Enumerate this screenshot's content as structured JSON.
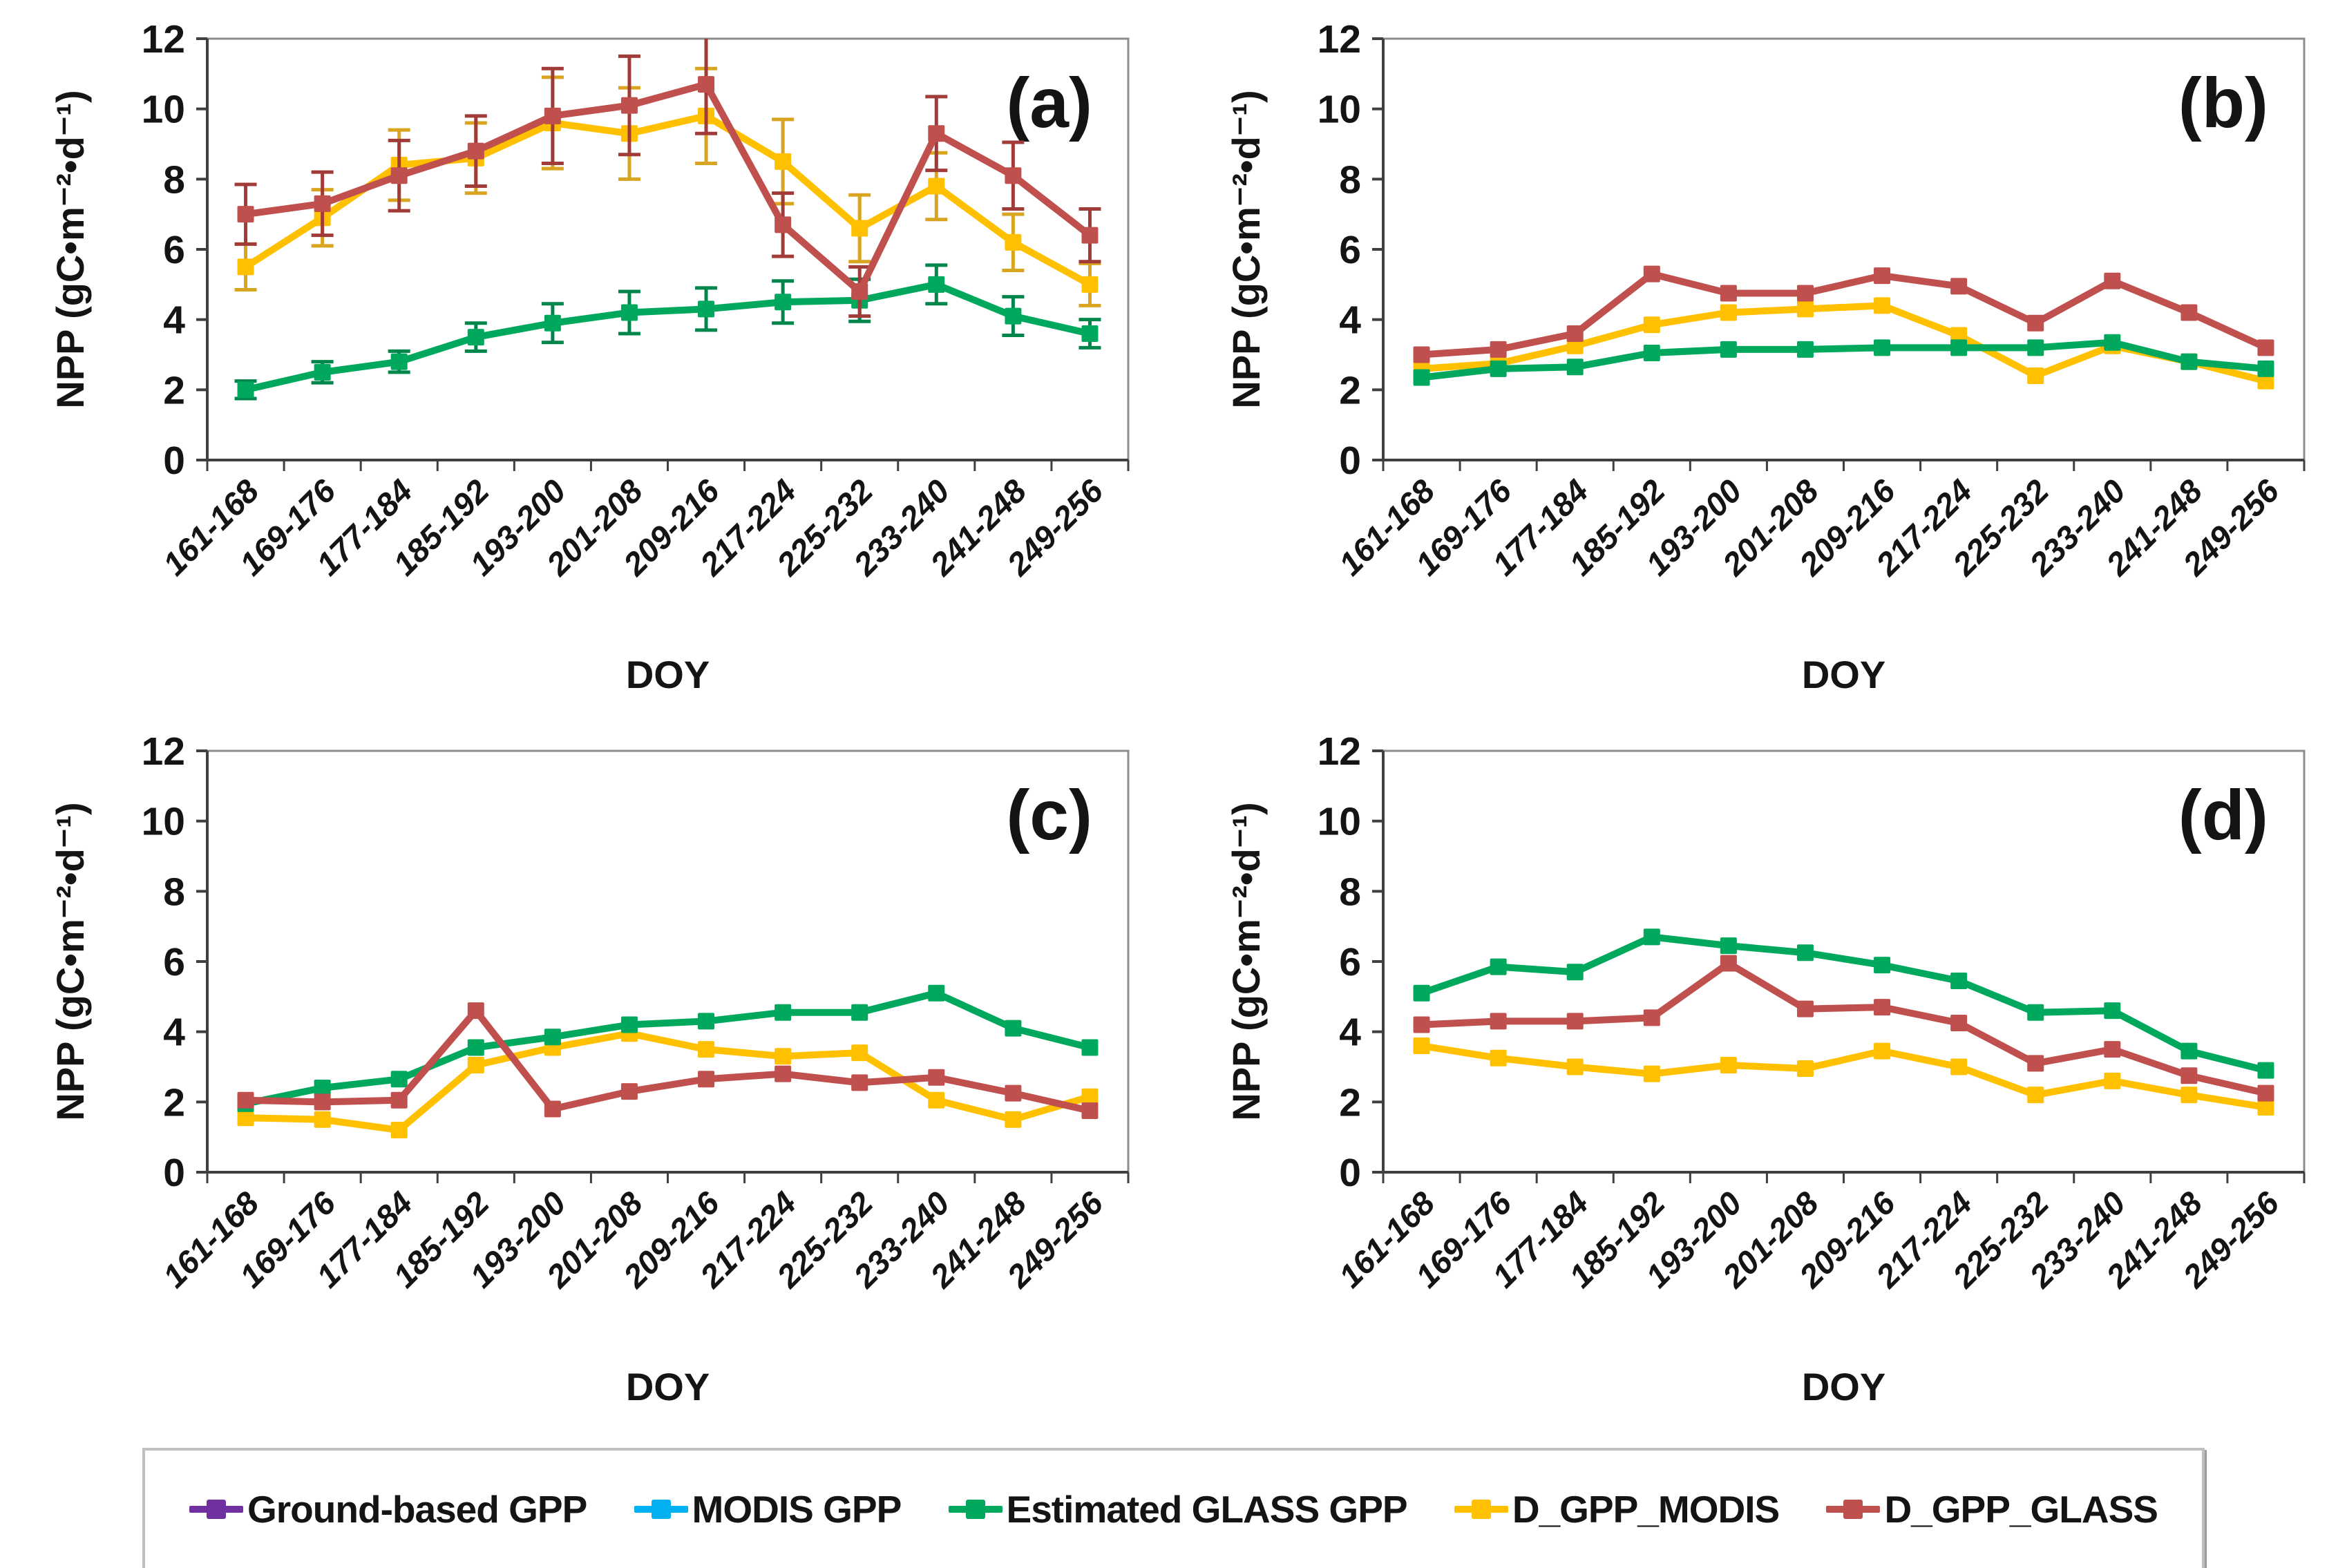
{
  "page": {
    "background": "#ffffff"
  },
  "legend": {
    "entries": [
      {
        "label": "Ground-based GPP",
        "color": "#7030A0"
      },
      {
        "label": "MODIS GPP",
        "color": "#00B0F0"
      },
      {
        "label": "Estimated GLASS GPP",
        "color": "#00A85D"
      },
      {
        "label": "D_GPP_MODIS",
        "color": "#FFC000"
      },
      {
        "label": "D_GPP_GLASS",
        "color": "#C0504D"
      }
    ],
    "position": "bottom"
  },
  "chart_data": [
    {
      "type": "line",
      "panel_label": "(a)",
      "xlabel": "DOY",
      "ylabel": "NPP (gC•m⁻²•d⁻¹)",
      "ylim": [
        0,
        12
      ],
      "yticks": [
        0,
        2,
        4,
        6,
        8,
        10,
        12
      ],
      "grid": false,
      "error_bars": true,
      "categories": [
        "161-168",
        "169-176",
        "177-184",
        "185-192",
        "193-200",
        "201-208",
        "209-216",
        "217-224",
        "225-232",
        "233-240",
        "241-248",
        "249-256"
      ],
      "series": [
        {
          "name": "D_GPP_MODIS",
          "color": "#FFC000",
          "error_color": "#D9A420",
          "values": [
            5.5,
            6.9,
            8.4,
            8.6,
            9.6,
            9.3,
            9.8,
            8.5,
            6.6,
            7.8,
            6.2,
            5.0
          ],
          "errors": [
            0.65,
            0.8,
            1.0,
            1.0,
            1.3,
            1.3,
            1.35,
            1.2,
            0.95,
            0.95,
            0.8,
            0.6
          ]
        },
        {
          "name": "Estimated GLASS GPP",
          "color": "#00A85D",
          "error_color": "#00854A",
          "values": [
            2.0,
            2.5,
            2.8,
            3.5,
            3.9,
            4.2,
            4.3,
            4.5,
            4.55,
            5.0,
            4.1,
            3.6
          ],
          "errors": [
            0.25,
            0.3,
            0.3,
            0.4,
            0.55,
            0.6,
            0.6,
            0.6,
            0.6,
            0.55,
            0.55,
            0.4
          ]
        },
        {
          "name": "D_GPP_GLASS",
          "color": "#C0504D",
          "error_color": "#A03B38",
          "values": [
            7.0,
            7.3,
            8.1,
            8.8,
            9.8,
            10.1,
            10.7,
            6.7,
            4.8,
            9.3,
            8.1,
            6.4
          ],
          "errors": [
            0.85,
            0.9,
            1.0,
            1.0,
            1.35,
            1.4,
            1.4,
            0.9,
            0.7,
            1.05,
            0.95,
            0.75
          ]
        }
      ]
    },
    {
      "type": "line",
      "panel_label": "(b)",
      "xlabel": "DOY",
      "ylabel": "NPP (gC•m⁻²•d⁻¹)",
      "ylim": [
        0,
        12
      ],
      "yticks": [
        0,
        2,
        4,
        6,
        8,
        10,
        12
      ],
      "grid": false,
      "error_bars": false,
      "categories": [
        "161-168",
        "169-176",
        "177-184",
        "185-192",
        "193-200",
        "201-208",
        "209-216",
        "217-224",
        "225-232",
        "233-240",
        "241-248",
        "249-256"
      ],
      "series": [
        {
          "name": "D_GPP_MODIS",
          "color": "#FFC000",
          "values": [
            2.6,
            2.75,
            3.25,
            3.85,
            4.2,
            4.3,
            4.4,
            3.55,
            2.4,
            3.25,
            2.8,
            2.25
          ]
        },
        {
          "name": "Estimated GLASS GPP",
          "color": "#00A85D",
          "values": [
            2.35,
            2.6,
            2.65,
            3.05,
            3.15,
            3.15,
            3.2,
            3.2,
            3.2,
            3.35,
            2.8,
            2.6
          ]
        },
        {
          "name": "D_GPP_GLASS",
          "color": "#C0504D",
          "values": [
            3.0,
            3.15,
            3.6,
            5.3,
            4.75,
            4.75,
            5.25,
            4.95,
            3.9,
            5.1,
            4.2,
            3.2
          ]
        }
      ]
    },
    {
      "type": "line",
      "panel_label": "(c)",
      "xlabel": "DOY",
      "ylabel": "NPP (gC•m⁻²•d⁻¹)",
      "ylim": [
        0,
        12
      ],
      "yticks": [
        0,
        2,
        4,
        6,
        8,
        10,
        12
      ],
      "grid": false,
      "error_bars": false,
      "categories": [
        "161-168",
        "169-176",
        "177-184",
        "185-192",
        "193-200",
        "201-208",
        "209-216",
        "217-224",
        "225-232",
        "233-240",
        "241-248",
        "249-256"
      ],
      "series": [
        {
          "name": "D_GPP_MODIS",
          "color": "#FFC000",
          "values": [
            1.55,
            1.5,
            1.2,
            3.05,
            3.55,
            3.95,
            3.5,
            3.3,
            3.4,
            2.05,
            1.5,
            2.15
          ]
        },
        {
          "name": "Estimated GLASS GPP",
          "color": "#00A85D",
          "values": [
            1.95,
            2.4,
            2.65,
            3.55,
            3.85,
            4.2,
            4.3,
            4.55,
            4.55,
            5.1,
            4.1,
            3.55
          ]
        },
        {
          "name": "D_GPP_GLASS",
          "color": "#C0504D",
          "values": [
            2.05,
            2.0,
            2.05,
            4.6,
            1.8,
            2.3,
            2.65,
            2.8,
            2.55,
            2.7,
            2.25,
            1.75
          ]
        }
      ]
    },
    {
      "type": "line",
      "panel_label": "(d)",
      "xlabel": "DOY",
      "ylabel": "NPP (gC•m⁻²•d⁻¹)",
      "ylim": [
        0,
        12
      ],
      "yticks": [
        0,
        2,
        4,
        6,
        8,
        10,
        12
      ],
      "grid": false,
      "error_bars": false,
      "categories": [
        "161-168",
        "169-176",
        "177-184",
        "185-192",
        "193-200",
        "201-208",
        "209-216",
        "217-224",
        "225-232",
        "233-240",
        "241-248",
        "249-256"
      ],
      "series": [
        {
          "name": "D_GPP_MODIS",
          "color": "#FFC000",
          "values": [
            3.6,
            3.25,
            3.0,
            2.8,
            3.05,
            2.95,
            3.45,
            3.0,
            2.2,
            2.6,
            2.2,
            1.85
          ]
        },
        {
          "name": "Estimated GLASS GPP",
          "color": "#00A85D",
          "values": [
            5.1,
            5.85,
            5.7,
            6.7,
            6.45,
            6.25,
            5.9,
            5.45,
            4.55,
            4.6,
            3.45,
            2.9
          ]
        },
        {
          "name": "D_GPP_GLASS",
          "color": "#C0504D",
          "values": [
            4.2,
            4.3,
            4.3,
            4.4,
            5.95,
            4.65,
            4.7,
            4.25,
            3.1,
            3.5,
            2.75,
            2.25
          ]
        }
      ]
    }
  ]
}
